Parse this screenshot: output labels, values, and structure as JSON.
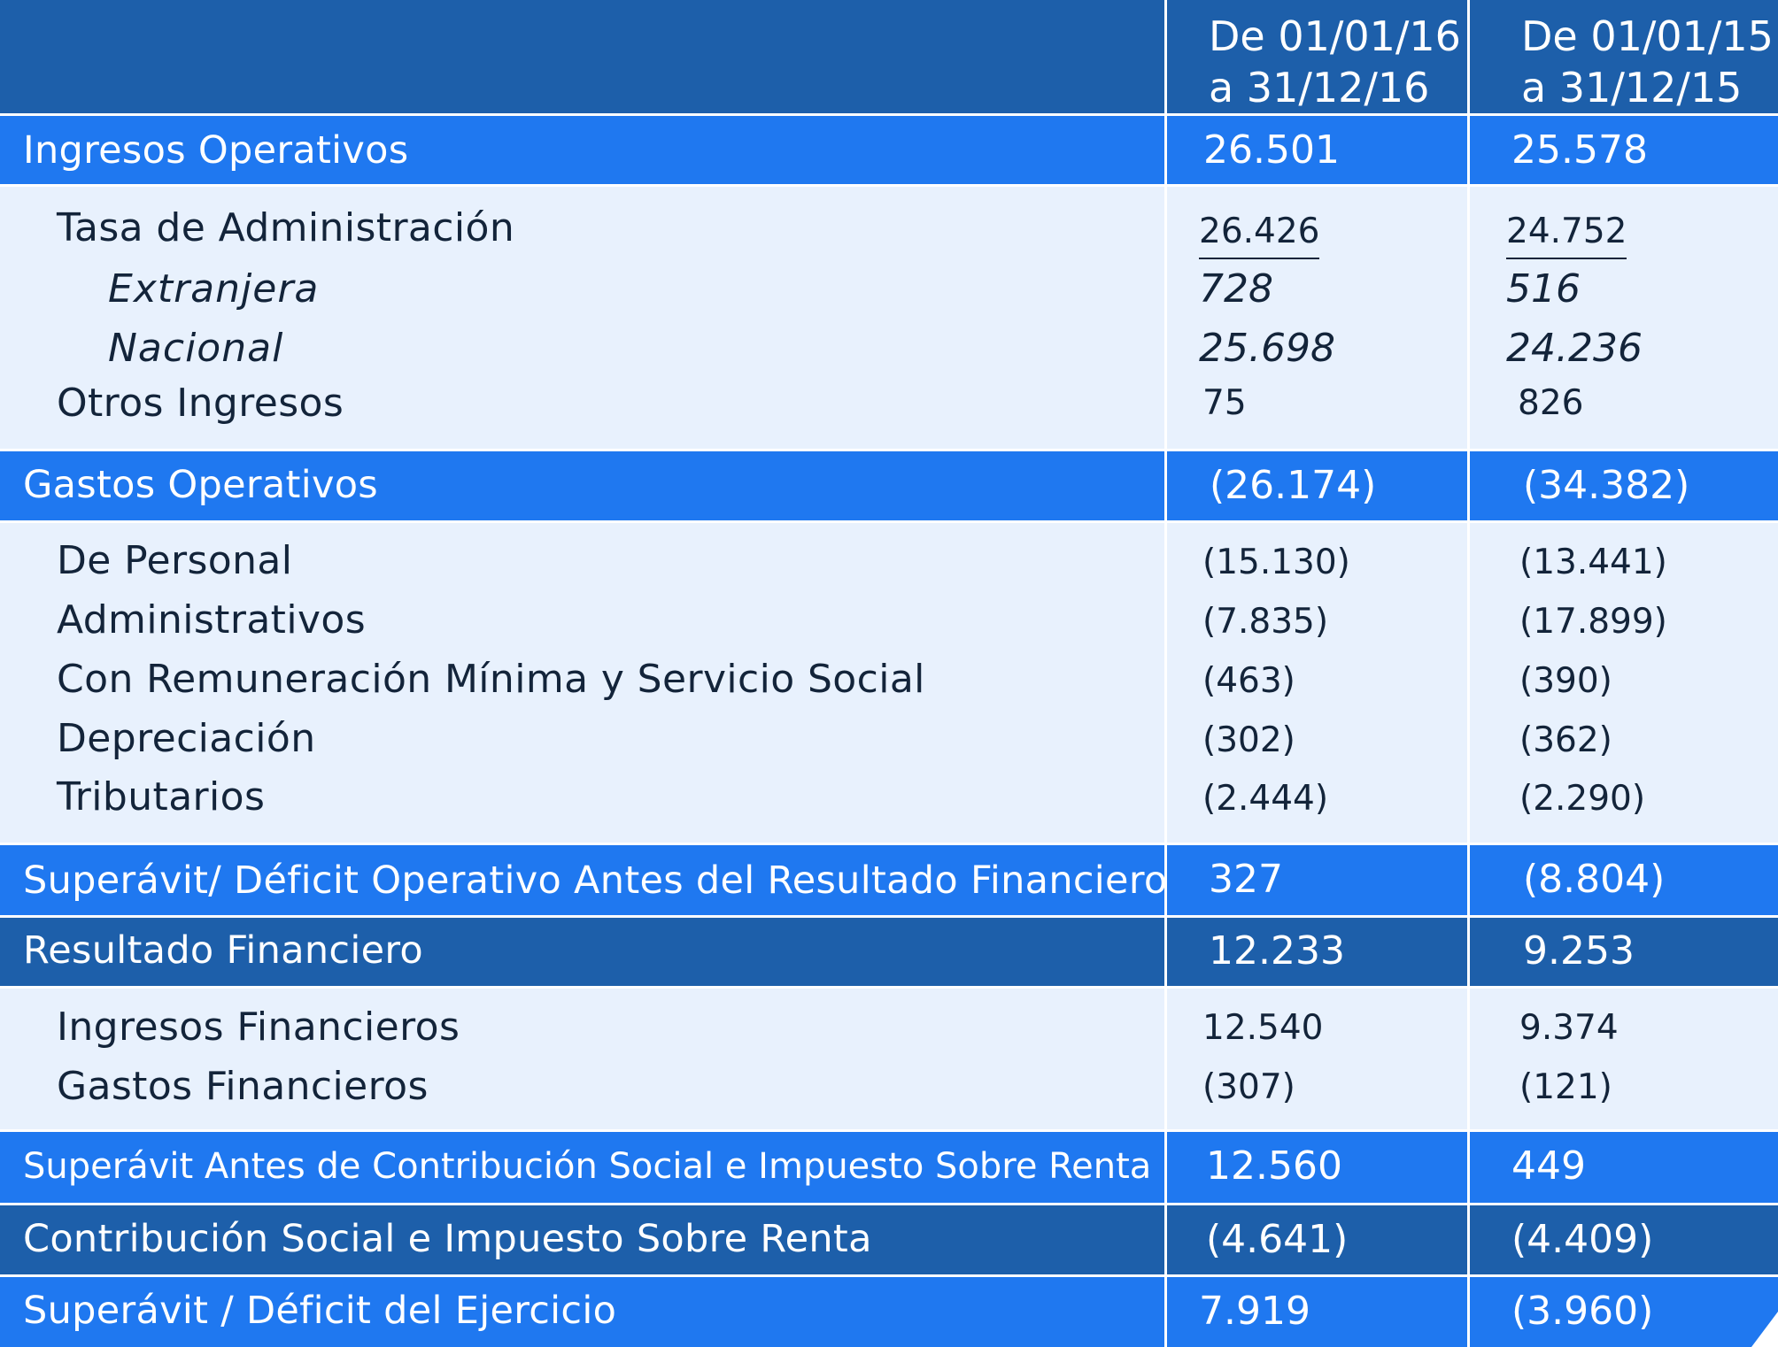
{
  "header": {
    "col1": "De 01/01/16\na 31/12/16",
    "col2": "De 01/01/15\na 31/12/15"
  },
  "rows": [
    {
      "label": "Ingresos Operativos",
      "v16": "26.501",
      "v15": "25.578",
      "style": "main"
    },
    {
      "label": "Tasa de Administración",
      "v16": "26.426",
      "v15": "24.752",
      "style": "sub-underlined"
    },
    {
      "label": "Extranjera",
      "v16": "728",
      "v15": "516",
      "style": "italic"
    },
    {
      "label": "Nacional",
      "v16": "25.698",
      "v15": "24.236",
      "style": "italic"
    },
    {
      "label": "Otros Ingresos",
      "v16": "75",
      "v15": "826",
      "style": "sub"
    },
    {
      "label": "Gastos Operativos",
      "v16": "(26.174)",
      "v15": "(34.382)",
      "style": "main"
    },
    {
      "label": "De Personal",
      "v16": "(15.130)",
      "v15": "(13.441)",
      "style": "sub"
    },
    {
      "label": "Administrativos",
      "v16": "(7.835)",
      "v15": "(17.899)",
      "style": "sub"
    },
    {
      "label": "Con Remuneración Mínima y Servicio Social",
      "v16": "(463)",
      "v15": "(390)",
      "style": "sub"
    },
    {
      "label": "Depreciación",
      "v16": "(302)",
      "v15": "(362)",
      "style": "sub"
    },
    {
      "label": "Tributarios",
      "v16": "(2.444)",
      "v15": "(2.290)",
      "style": "sub"
    },
    {
      "label": "Superávit/ Déficit Operativo Antes del Resultado Financiero",
      "v16": "327",
      "v15": "(8.804)",
      "style": "main"
    },
    {
      "label": "Resultado Financiero",
      "v16": "12.233",
      "v15": "9.253",
      "style": "main"
    },
    {
      "label": "Ingresos Financieros",
      "v16": "12.540",
      "v15": "9.374",
      "style": "sub"
    },
    {
      "label": "Gastos Financieros",
      "v16": "(307)",
      "v15": "(121)",
      "style": "sub"
    },
    {
      "label": "Superávit Antes de Contribución Social e Impuesto Sobre Renta",
      "v16": "12.560",
      "v15": "449",
      "style": "main"
    },
    {
      "label": "Contribución Social e Impuesto Sobre Renta",
      "v16": "(4.641)",
      "v15": "(4.409)",
      "style": "main"
    },
    {
      "label": "Superávit / Déficit del Ejercicio",
      "v16": "7.919",
      "v15": "(3.960)",
      "style": "main"
    }
  ],
  "colors": {
    "header_band": "#1d5faa",
    "bright_band": "#1f78f0",
    "dark_band": "#1d5faa",
    "light_band": "#e8f1fd",
    "text_dark": "#13243a"
  }
}
